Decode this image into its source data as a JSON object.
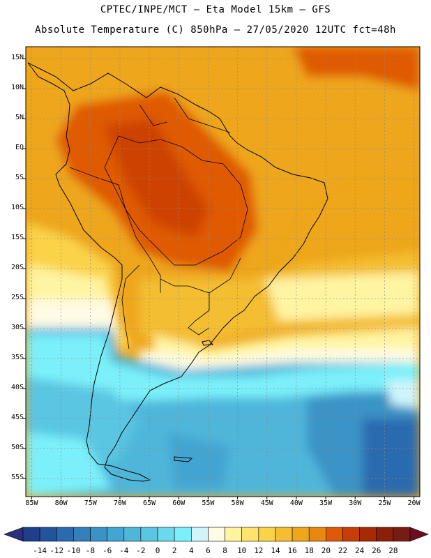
{
  "header": {
    "line1": "CPTEC/INPE/MCT –  Eta Model 15km – GFS",
    "line2": "Absolute Temperature (C) 850hPa – 27/05/2020 12UTC fct=48h"
  },
  "map": {
    "lat_labels": [
      "15N",
      "10N",
      "5N",
      "EQ",
      "5S",
      "10S",
      "15S",
      "20S",
      "25S",
      "30S",
      "35S",
      "40S",
      "45S",
      "50S",
      "55S"
    ],
    "lat_values": [
      15,
      10,
      5,
      0,
      -5,
      -10,
      -15,
      -20,
      -25,
      -30,
      -35,
      -40,
      -45,
      -50,
      -55
    ],
    "lon_labels": [
      "85W",
      "80W",
      "75W",
      "70W",
      "65W",
      "60W",
      "55W",
      "50W",
      "45W",
      "40W",
      "35W",
      "30W",
      "25W",
      "20W"
    ],
    "lon_values": [
      -85,
      -80,
      -75,
      -70,
      -65,
      -60,
      -55,
      -50,
      -45,
      -40,
      -35,
      -30,
      -25,
      -20
    ],
    "lat_range": [
      -58,
      17
    ],
    "lon_range": [
      -86,
      -19
    ]
  },
  "colorbar": {
    "labels": [
      "-14",
      "-12",
      "-10",
      "-8",
      "-6",
      "-4",
      "-2",
      "0",
      "2",
      "4",
      "6",
      "8",
      "10",
      "12",
      "14",
      "16",
      "18",
      "20",
      "22",
      "24",
      "26",
      "28"
    ],
    "colors": [
      "#1f3f8a",
      "#22549c",
      "#2a6aae",
      "#3380bb",
      "#3a93c6",
      "#43a5d1",
      "#4fb6da",
      "#5ac6e2",
      "#6bd9ed",
      "#7cf0fa",
      "#cff5fb",
      "#fffbe4",
      "#fff4a2",
      "#ffe46f",
      "#fbd348",
      "#f4be30",
      "#eea61a",
      "#e8880c",
      "#df5a06",
      "#c83c05",
      "#a72a05",
      "#8a1f0a",
      "#761c14"
    ],
    "low_arrow_color": "#2b2f7d",
    "high_arrow_color": "#6a0f22"
  }
}
